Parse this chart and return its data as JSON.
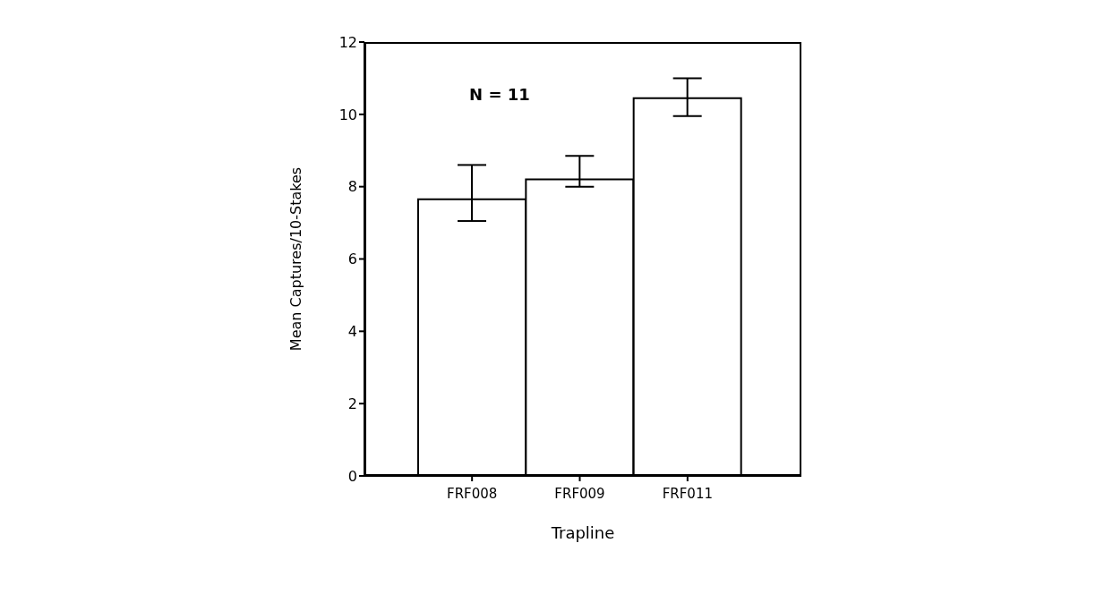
{
  "chart_data": {
    "type": "bar",
    "xlabel": "Trapline",
    "ylabel": "Mean Captures/10-Stakes",
    "categories": [
      "FRF008",
      "FRF009",
      "FRF011"
    ],
    "values": [
      7.65,
      8.2,
      10.45
    ],
    "errors": [
      [
        7.05,
        8.6
      ],
      [
        8.0,
        8.85
      ],
      [
        9.95,
        11.0
      ]
    ],
    "color": "#ffffff",
    "ylim": [
      0,
      12
    ],
    "yticks": [
      0,
      2,
      4,
      6,
      8,
      10,
      12
    ],
    "annotations": [
      "N = 11"
    ]
  }
}
